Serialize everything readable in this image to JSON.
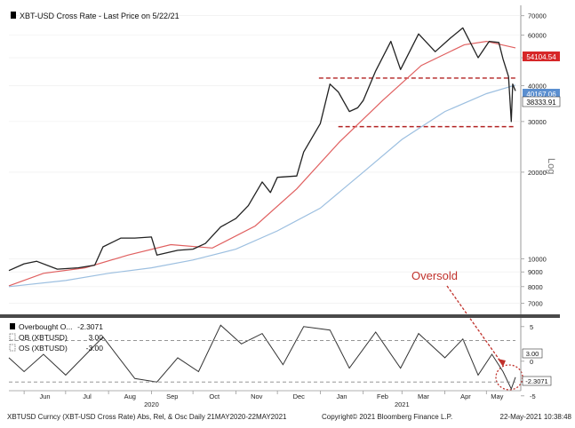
{
  "header": {
    "title": "XBT-USD Cross Rate - Last Price on 5/22/21"
  },
  "price_tags": {
    "last": "38333.91",
    "ma50": "54104.54",
    "ma200": "40167.06"
  },
  "price_tag_colors": {
    "last": "#ffffff",
    "ma50": "#d62728",
    "ma200": "#5b8fd0"
  },
  "log_label": "Log",
  "annotation": {
    "text": "Oversold",
    "color": "#c0312b"
  },
  "osc_legend": {
    "row1_label": "Overbought O...",
    "row1_value": "-2.3071",
    "row2_label": "OB (XBTUSD)",
    "row2_value": "3.00",
    "row3_label": "OS (XBTUSD)",
    "row3_value": "-3.00"
  },
  "osc_tags": {
    "ob": "3.00",
    "value": "-2.3071"
  },
  "footer": {
    "left": "XBTUSD Curncy (XBT-USD Cross Rate) Abs, Rel, & Osc  Daily 21MAY2020-22MAY2021",
    "copyright": "Copyright© 2021 Bloomberg Finance L.P.",
    "timestamp": "22-May-2021 10:38:48"
  },
  "chart_data": [
    {
      "type": "line",
      "scale": "log",
      "y_ticks": [
        7000,
        8000,
        9000,
        10000,
        20000,
        30000,
        40000,
        50000,
        60000,
        70000
      ],
      "y_tick_labels": [
        "7000",
        "8000",
        "9000",
        "10000",
        "20000",
        "30000",
        "40000",
        "50000",
        "60000",
        "70000"
      ],
      "ylim": [
        6500,
        75000
      ],
      "x_tick_labels": [
        "Jun",
        "Jul",
        "Aug",
        "Sep",
        "Oct",
        "Nov",
        "Dec",
        "Jan",
        "Feb",
        "Mar",
        "Apr",
        "May"
      ],
      "x_tick_dates": [
        "2020-06-01",
        "2020-07-01",
        "2020-08-01",
        "2020-09-01",
        "2020-10-01",
        "2020-11-01",
        "2020-12-01",
        "2021-01-01",
        "2021-02-01",
        "2021-03-01",
        "2021-04-01",
        "2021-05-01"
      ],
      "x_year_labels": [
        {
          "date": "2020-09-01",
          "label": "2020"
        },
        {
          "date": "2021-03-01",
          "label": "2021"
        }
      ],
      "x_range": [
        "2020-05-21",
        "2021-05-22"
      ],
      "series": [
        {
          "kind": "price",
          "color": "#222222",
          "points": [
            [
              "2020-05-21",
              9100
            ],
            [
              "2020-06-01",
              9600
            ],
            [
              "2020-06-10",
              9800
            ],
            [
              "2020-06-25",
              9200
            ],
            [
              "2020-07-10",
              9300
            ],
            [
              "2020-07-22",
              9500
            ],
            [
              "2020-07-28",
              11000
            ],
            [
              "2020-08-10",
              11800
            ],
            [
              "2020-08-20",
              11800
            ],
            [
              "2020-09-01",
              11900
            ],
            [
              "2020-09-05",
              10300
            ],
            [
              "2020-09-20",
              10700
            ],
            [
              "2020-10-01",
              10800
            ],
            [
              "2020-10-10",
              11300
            ],
            [
              "2020-10-21",
              12900
            ],
            [
              "2020-11-01",
              13800
            ],
            [
              "2020-11-10",
              15300
            ],
            [
              "2020-11-20",
              18500
            ],
            [
              "2020-11-26",
              17000
            ],
            [
              "2020-12-01",
              19200
            ],
            [
              "2020-12-15",
              19400
            ],
            [
              "2020-12-20",
              23500
            ],
            [
              "2021-01-01",
              29500
            ],
            [
              "2021-01-08",
              40500
            ],
            [
              "2021-01-14",
              38000
            ],
            [
              "2021-01-22",
              32500
            ],
            [
              "2021-01-28",
              33500
            ],
            [
              "2021-02-01",
              35500
            ],
            [
              "2021-02-10",
              45000
            ],
            [
              "2021-02-21",
              57000
            ],
            [
              "2021-02-28",
              45500
            ],
            [
              "2021-03-13",
              60500
            ],
            [
              "2021-03-25",
              52500
            ],
            [
              "2021-04-05",
              58500
            ],
            [
              "2021-04-14",
              63500
            ],
            [
              "2021-04-25",
              50000
            ],
            [
              "2021-05-03",
              57000
            ],
            [
              "2021-05-10",
              56500
            ],
            [
              "2021-05-13",
              49500
            ],
            [
              "2021-05-17",
              43000
            ],
            [
              "2021-05-19",
              30000
            ],
            [
              "2021-05-20",
              40500
            ],
            [
              "2021-05-22",
              38333.91
            ]
          ]
        },
        {
          "kind": "moving average",
          "color": "#e06060",
          "points": [
            [
              "2020-05-21",
              8050
            ],
            [
              "2020-06-15",
              8900
            ],
            [
              "2020-07-15",
              9300
            ],
            [
              "2020-08-15",
              10300
            ],
            [
              "2020-09-15",
              11200
            ],
            [
              "2020-10-15",
              10900
            ],
            [
              "2020-11-15",
              13000
            ],
            [
              "2020-12-15",
              17500
            ],
            [
              "2021-01-15",
              25500
            ],
            [
              "2021-02-15",
              35500
            ],
            [
              "2021-03-15",
              47000
            ],
            [
              "2021-04-15",
              55500
            ],
            [
              "2021-05-01",
              57000
            ],
            [
              "2021-05-22",
              54104.54
            ]
          ]
        },
        {
          "kind": "moving average",
          "color": "#9cbfe0",
          "points": [
            [
              "2020-05-21",
              8000
            ],
            [
              "2020-07-01",
              8400
            ],
            [
              "2020-08-01",
              8900
            ],
            [
              "2020-09-01",
              9300
            ],
            [
              "2020-10-01",
              9900
            ],
            [
              "2020-11-01",
              10800
            ],
            [
              "2020-12-01",
              12500
            ],
            [
              "2021-01-01",
              15000
            ],
            [
              "2021-02-01",
              20000
            ],
            [
              "2021-03-01",
              26000
            ],
            [
              "2021-04-01",
              32500
            ],
            [
              "2021-05-01",
              37500
            ],
            [
              "2021-05-22",
              40167.06
            ]
          ]
        }
      ],
      "reference_lines": [
        {
          "y": 42500,
          "color": "#b22222",
          "style": "dashed"
        },
        {
          "y": 28800,
          "color": "#b22222",
          "style": "dashed"
        }
      ]
    },
    {
      "type": "line",
      "y_ticks": [
        -5,
        0,
        5
      ],
      "y_tick_labels": [
        "-5",
        "0",
        "5"
      ],
      "ylim": [
        -4,
        6
      ],
      "series": [
        {
          "name": "Overbought O...",
          "color": "#333333",
          "points": [
            [
              "2020-05-21",
              0.5
            ],
            [
              "2020-06-01",
              -1.5
            ],
            [
              "2020-06-15",
              1.0
            ],
            [
              "2020-07-01",
              -2.0
            ],
            [
              "2020-07-28",
              3.5
            ],
            [
              "2020-08-20",
              -2.5
            ],
            [
              "2020-09-05",
              -3.0
            ],
            [
              "2020-09-20",
              0.5
            ],
            [
              "2020-10-05",
              -1.5
            ],
            [
              "2020-10-21",
              5.2
            ],
            [
              "2020-11-05",
              2.5
            ],
            [
              "2020-11-20",
              4.0
            ],
            [
              "2020-12-05",
              -0.5
            ],
            [
              "2020-12-20",
              5.0
            ],
            [
              "2021-01-08",
              4.5
            ],
            [
              "2021-01-22",
              -1.0
            ],
            [
              "2021-02-10",
              4.2
            ],
            [
              "2021-02-28",
              -1.0
            ],
            [
              "2021-03-13",
              4.0
            ],
            [
              "2021-04-01",
              0.5
            ],
            [
              "2021-04-14",
              3.2
            ],
            [
              "2021-04-25",
              -2.0
            ],
            [
              "2021-05-05",
              1.0
            ],
            [
              "2021-05-13",
              -1.5
            ],
            [
              "2021-05-19",
              -4.0
            ],
            [
              "2021-05-22",
              -2.3071
            ]
          ]
        },
        {
          "name": "OB (XBTUSD)",
          "color": "#888888",
          "style": "dashed",
          "points": [
            [
              "2020-05-21",
              3.0
            ],
            [
              "2021-05-22",
              3.0
            ]
          ]
        },
        {
          "name": "OS (XBTUSD)",
          "color": "#888888",
          "style": "dashed",
          "points": [
            [
              "2020-05-21",
              -3.0
            ],
            [
              "2021-05-22",
              -3.0
            ]
          ]
        }
      ]
    }
  ]
}
